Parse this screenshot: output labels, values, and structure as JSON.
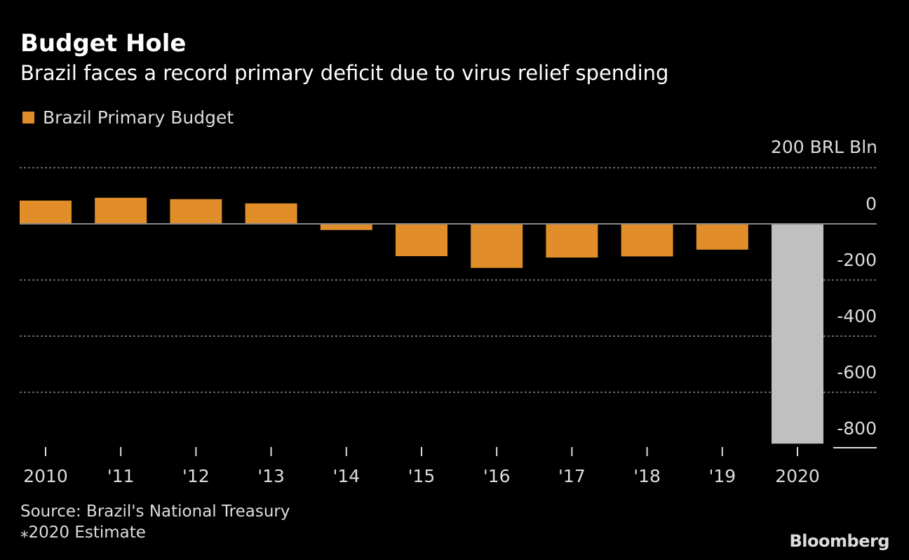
{
  "chart_data": {
    "type": "bar",
    "title": "Budget Hole",
    "subtitle": "Brazil faces a record primary deficit due to virus relief spending",
    "legend": [
      {
        "name": "Brazil Primary Budget",
        "color": "#E08D2A"
      }
    ],
    "unit_label": "200 BRL Bln",
    "categories": [
      "2010",
      "'11",
      "'12",
      "'13",
      "'14",
      "'15",
      "'16",
      "'17",
      "'18",
      "'19",
      "2020"
    ],
    "values": [
      83,
      93,
      88,
      73,
      -22,
      -115,
      -157,
      -120,
      -116,
      -92,
      -783
    ],
    "colors": [
      "#E08D2A",
      "#E08D2A",
      "#E08D2A",
      "#E08D2A",
      "#E08D2A",
      "#E08D2A",
      "#E08D2A",
      "#E08D2A",
      "#E08D2A",
      "#E08D2A",
      "#C0C0C0"
    ],
    "yticks": [
      200,
      0,
      -200,
      -400,
      -600,
      -800
    ],
    "ytick_labels": [
      "",
      "0",
      "-200",
      "-400",
      "-600",
      "-800"
    ],
    "ylim": [
      -800,
      200
    ],
    "grid": true,
    "legend_position": "top-left"
  },
  "footer": {
    "source": "Source: Brazil's National Treasury",
    "note": "⁎2020 Estimate",
    "brand": "Bloomberg"
  }
}
